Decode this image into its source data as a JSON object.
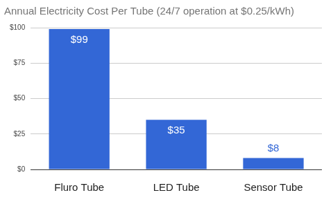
{
  "chart_data": {
    "type": "bar",
    "title": "Annual Electricity Cost Per Tube (24/7 operation at $0.25/kWh)",
    "categories": [
      "Fluro Tube",
      "LED Tube",
      "Sensor Tube"
    ],
    "values": [
      99,
      35,
      8
    ],
    "value_labels": [
      "$99",
      "$35",
      "$8"
    ],
    "color": "#3367d6",
    "ylim": [
      0,
      100
    ],
    "yticks": [
      {
        "value": 0,
        "label": "$0"
      },
      {
        "value": 25,
        "label": "$25"
      },
      {
        "value": 50,
        "label": "$50"
      },
      {
        "value": 75,
        "label": "$75"
      },
      {
        "value": 100,
        "label": "$100"
      }
    ],
    "grid": true,
    "data_labels": true
  }
}
